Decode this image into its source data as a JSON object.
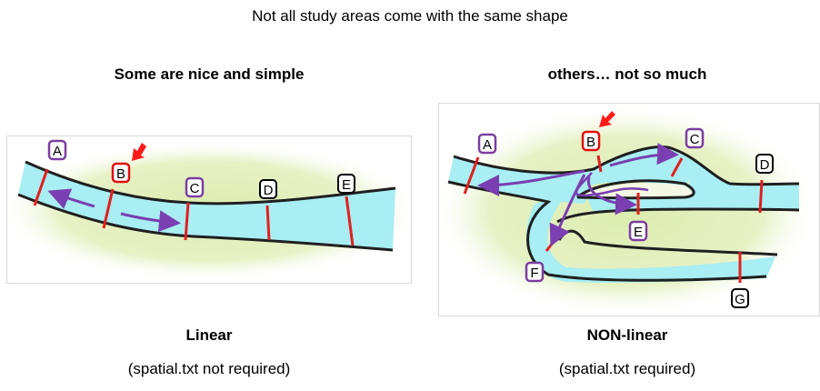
{
  "title": "Not all study areas come with the same shape",
  "left": {
    "heading": "Some are nice and simple",
    "label": "Linear",
    "sublabel": "(spatial.txt not required)",
    "points": [
      "A",
      "B",
      "C",
      "D",
      "E"
    ]
  },
  "right": {
    "heading": "others… not so much",
    "label": "NON-linear",
    "sublabel": "(spatial.txt required)",
    "points": [
      "A",
      "B",
      "C",
      "D",
      "E",
      "F",
      "G"
    ]
  },
  "colors": {
    "river": "#a8eef3",
    "bank": "#1f1f1f",
    "glow": "#dcecae",
    "transect": "#e02020",
    "flow_arrow": "#7a3fb0",
    "highlight_arrow": "#ff1a1a",
    "badge_purple": "#7b3fa0",
    "badge_red": "#e01010",
    "badge_black": "#000000"
  }
}
